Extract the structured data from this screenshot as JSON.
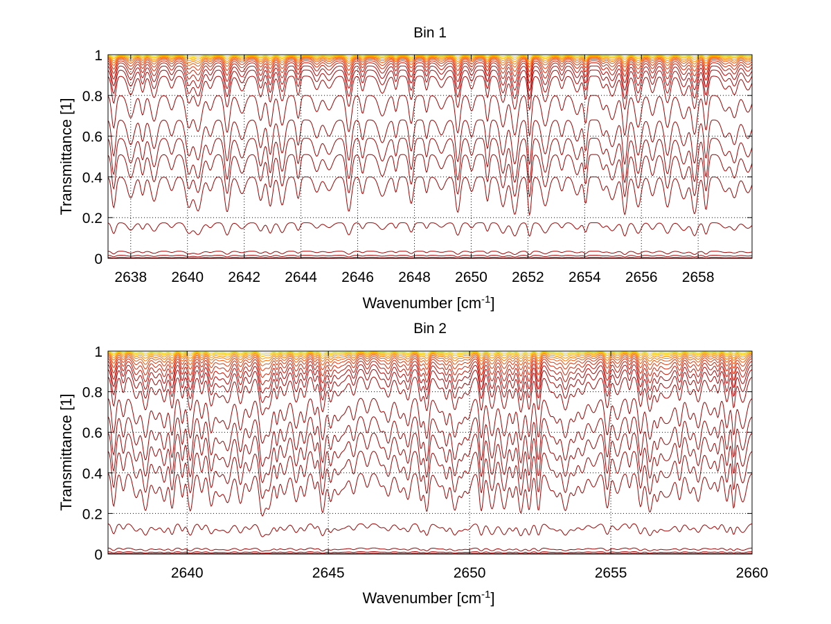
{
  "chart_data": [
    {
      "type": "line",
      "title": "Bin 1",
      "xlabel": "Wavenumber [cm",
      "xlabel_sup": "-1",
      "xlabel_suffix": "]",
      "ylabel": "Transmittance [1]",
      "xlim": [
        2637.2,
        2659.9
      ],
      "ylim": [
        0,
        1
      ],
      "xticks": [
        2638,
        2640,
        2642,
        2644,
        2646,
        2648,
        2650,
        2652,
        2654,
        2656,
        2658
      ],
      "xtick_labels": [
        "2638",
        "2640",
        "2642",
        "2644",
        "2646",
        "2648",
        "2650",
        "2652",
        "2654",
        "2656",
        "2658"
      ],
      "yticks": [
        0,
        0.2,
        0.4,
        0.6,
        0.8,
        1
      ],
      "ytick_labels": [
        "0",
        "0.2",
        "0.4",
        "0.6",
        "0.8",
        "1"
      ],
      "grid": true,
      "line_spacing": 0.5,
      "series": [
        {
          "base": 0.997,
          "depth": 0.006,
          "color": "#c8e060"
        },
        {
          "base": 0.995,
          "depth": 0.01,
          "color": "#ffd000"
        },
        {
          "base": 0.993,
          "depth": 0.015,
          "color": "#ffb000"
        },
        {
          "base": 0.99,
          "depth": 0.022,
          "color": "#ff9000"
        },
        {
          "base": 0.987,
          "depth": 0.03,
          "color": "#ff7000"
        },
        {
          "base": 0.983,
          "depth": 0.04,
          "color": "#ff5000"
        },
        {
          "base": 0.978,
          "depth": 0.055,
          "color": "#f03000"
        },
        {
          "base": 0.97,
          "depth": 0.07,
          "color": "#e02000"
        },
        {
          "base": 0.96,
          "depth": 0.09,
          "color": "#cc1000"
        },
        {
          "base": 0.945,
          "depth": 0.11,
          "color": "#b80000"
        },
        {
          "base": 0.925,
          "depth": 0.13,
          "color": "#b00000"
        },
        {
          "base": 0.895,
          "depth": 0.15,
          "color": "#a80000"
        },
        {
          "base": 0.8,
          "depth": 0.18,
          "color": "#a00000"
        },
        {
          "base": 0.68,
          "depth": 0.2,
          "color": "#a00000"
        },
        {
          "base": 0.59,
          "depth": 0.2,
          "color": "#a00000"
        },
        {
          "base": 0.51,
          "depth": 0.19,
          "color": "#a00000"
        },
        {
          "base": 0.4,
          "depth": 0.17,
          "color": "#a00000"
        },
        {
          "base": 0.175,
          "depth": 0.06,
          "color": "#a00000"
        },
        {
          "base": 0.035,
          "depth": 0.015,
          "color": "#a00000"
        },
        {
          "base": 0.015,
          "depth": 0.008,
          "color": "#a00000"
        },
        {
          "base": 0.004,
          "depth": 0.003,
          "color": "#a00000"
        }
      ]
    },
    {
      "type": "line",
      "title": "Bin 2",
      "xlabel": "Wavenumber [cm",
      "xlabel_sup": "-1",
      "xlabel_suffix": "]",
      "ylabel": "Transmittance [1]",
      "xlim": [
        2637.2,
        2660
      ],
      "ylim": [
        0,
        1
      ],
      "xticks": [
        2640,
        2645,
        2650,
        2655,
        2660
      ],
      "xtick_labels": [
        "2640",
        "2645",
        "2650",
        "2655",
        "2660"
      ],
      "yticks": [
        0,
        0.2,
        0.4,
        0.6,
        0.8,
        1
      ],
      "ytick_labels": [
        "0",
        "0.2",
        "0.4",
        "0.6",
        "0.8",
        "1"
      ],
      "grid": true,
      "line_spacing": 0.35,
      "series": [
        {
          "base": 0.997,
          "depth": 0.006,
          "color": "#c8e060"
        },
        {
          "base": 0.995,
          "depth": 0.01,
          "color": "#ffd000"
        },
        {
          "base": 0.993,
          "depth": 0.016,
          "color": "#ffb000"
        },
        {
          "base": 0.99,
          "depth": 0.024,
          "color": "#ff9000"
        },
        {
          "base": 0.986,
          "depth": 0.033,
          "color": "#ff7000"
        },
        {
          "base": 0.981,
          "depth": 0.045,
          "color": "#ff5000"
        },
        {
          "base": 0.974,
          "depth": 0.06,
          "color": "#f03000"
        },
        {
          "base": 0.965,
          "depth": 0.08,
          "color": "#e02000"
        },
        {
          "base": 0.952,
          "depth": 0.1,
          "color": "#cc1000"
        },
        {
          "base": 0.935,
          "depth": 0.12,
          "color": "#b80000"
        },
        {
          "base": 0.912,
          "depth": 0.14,
          "color": "#b00000"
        },
        {
          "base": 0.875,
          "depth": 0.16,
          "color": "#a80000"
        },
        {
          "base": 0.77,
          "depth": 0.19,
          "color": "#a00000"
        },
        {
          "base": 0.68,
          "depth": 0.21,
          "color": "#a00000"
        },
        {
          "base": 0.6,
          "depth": 0.21,
          "color": "#a00000"
        },
        {
          "base": 0.51,
          "depth": 0.2,
          "color": "#a00000"
        },
        {
          "base": 0.4,
          "depth": 0.18,
          "color": "#a00000"
        },
        {
          "base": 0.15,
          "depth": 0.055,
          "color": "#a00000"
        },
        {
          "base": 0.03,
          "depth": 0.014,
          "color": "#a00000"
        },
        {
          "base": 0.012,
          "depth": 0.007,
          "color": "#a00000"
        },
        {
          "base": 0.004,
          "depth": 0.003,
          "color": "#a00000"
        }
      ]
    }
  ]
}
